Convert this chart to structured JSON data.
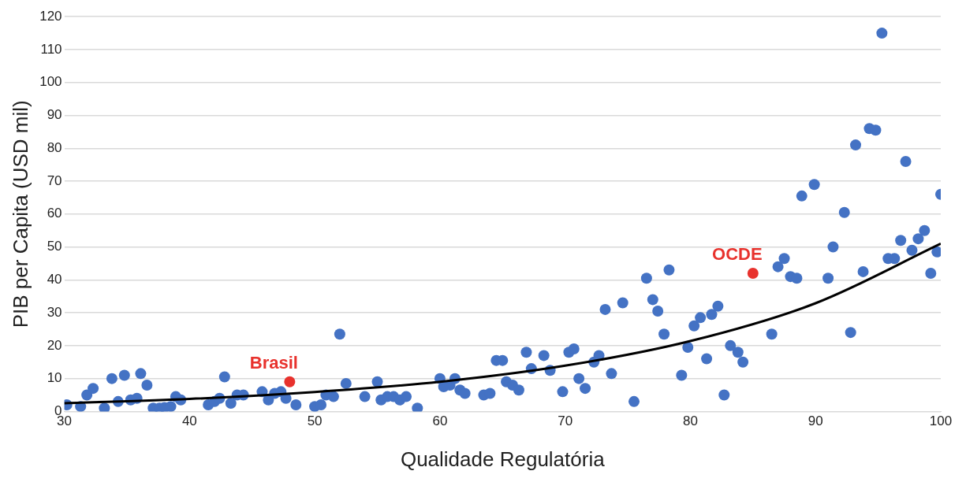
{
  "chart_data": {
    "type": "scatter",
    "xlabel": "Qualidade Regulatória",
    "ylabel": "PIB per Capita (USD mil)",
    "xlim": [
      30,
      100
    ],
    "xticks": [
      30,
      40,
      50,
      60,
      70,
      80,
      90,
      100
    ],
    "ylim": [
      0,
      120
    ],
    "yticks": [
      0,
      10,
      20,
      30,
      40,
      50,
      60,
      70,
      80,
      90,
      100,
      110,
      120
    ],
    "grid": "y",
    "legend": false,
    "marker": "circle",
    "series": [
      {
        "color": "#4472c4",
        "x": [
          30.2,
          31.3,
          31.8,
          32.3,
          33.2,
          33.8,
          34.3,
          34.8,
          35.3,
          35.8,
          36.1,
          36.6,
          37.1,
          37.6,
          38,
          38.5,
          38.9,
          39.3,
          41.5,
          42,
          42.4,
          42.8,
          43.3,
          43.8,
          44.3,
          45.8,
          46.3,
          46.8,
          47.3,
          47.7,
          48.5,
          50,
          50.5,
          50.9,
          51.5,
          52,
          52.5,
          54,
          55,
          55.3,
          55.8,
          56.3,
          56.8,
          57.3,
          58.2,
          60,
          60.3,
          60.8,
          61.2,
          61.6,
          62,
          63.5,
          64,
          64.5,
          65,
          65.3,
          65.8,
          66.3,
          66.9,
          67.3,
          68.3,
          68.8,
          69.8,
          70.3,
          70.7,
          71.1,
          71.6,
          72.3,
          72.7,
          73.2,
          73.7,
          74.6,
          75.5,
          76.5,
          77,
          77.4,
          77.9,
          78.3,
          79.3,
          79.8,
          80.3,
          80.8,
          81.3,
          81.7,
          82.2,
          82.7,
          83.2,
          83.8,
          84.2,
          86.5,
          87,
          87.5,
          88,
          88.5,
          88.9,
          89.9,
          91,
          91.4,
          92.3,
          92.8,
          93.2,
          93.8,
          94.3,
          94.8,
          95.3,
          95.8,
          96.3,
          96.8,
          97.2,
          97.7,
          98.2,
          98.7,
          99.2,
          99.7,
          100
        ],
        "values": [
          2,
          1.5,
          5,
          7,
          1,
          10,
          3,
          11,
          3.5,
          4,
          11.5,
          8,
          1,
          1,
          1.2,
          1.5,
          4.5,
          3.5,
          2,
          3,
          4,
          10.5,
          2.5,
          5,
          5,
          6,
          3.5,
          5.5,
          6,
          4,
          2,
          1.5,
          2,
          5,
          4.5,
          23.5,
          8.5,
          4.5,
          9,
          3.5,
          4.5,
          4.5,
          3.5,
          4.5,
          1,
          10,
          7.5,
          8,
          10,
          6.5,
          5.5,
          5,
          5.5,
          15.5,
          15.5,
          9,
          8,
          6.5,
          18,
          13,
          17,
          12.5,
          6,
          18,
          19,
          10,
          7,
          15,
          17,
          31,
          11.5,
          33,
          3,
          40.5,
          34,
          30.5,
          23.5,
          43,
          11,
          19.5,
          26,
          28.5,
          16,
          29.5,
          32,
          5,
          20,
          18,
          15,
          23.5,
          44,
          46.5,
          41,
          40.5,
          65.5,
          69,
          40.5,
          50,
          60.5,
          24,
          81,
          42.5,
          86,
          85.5,
          115,
          46.5,
          46.5,
          52,
          76,
          49,
          52.5,
          55,
          42,
          48.5,
          66
        ]
      },
      {
        "name": "Brasil",
        "color": "#e8322d",
        "x": [
          48
        ],
        "values": [
          9
        ]
      },
      {
        "name": "OCDE",
        "color": "#e8322d",
        "x": [
          85
        ],
        "values": [
          42
        ]
      },
      {
        "type": "line",
        "color": "#000000",
        "marker": "none",
        "x": [
          30,
          40,
          50,
          60,
          70,
          80,
          90,
          100
        ],
        "values": [
          2.5,
          3.8,
          5.9,
          9,
          13.9,
          21.4,
          32.9,
          51
        ]
      }
    ]
  }
}
